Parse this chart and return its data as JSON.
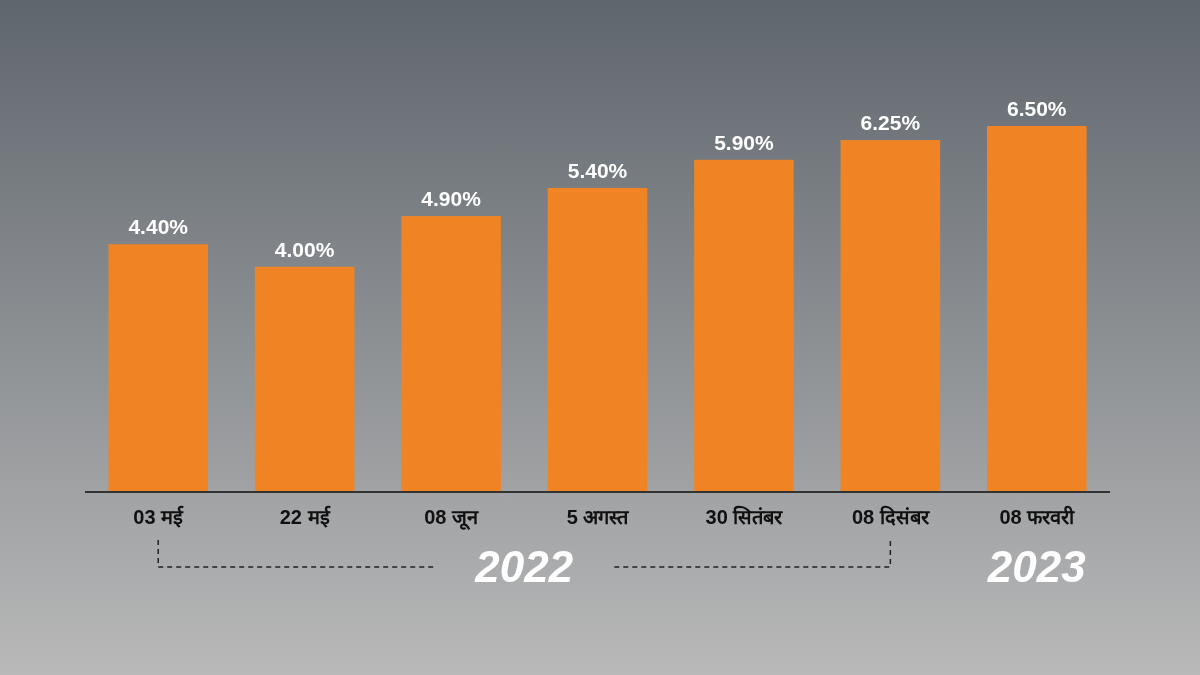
{
  "chart_data": {
    "type": "bar",
    "categories": [
      "03 मई",
      "22 मई",
      "08 जून",
      "5 अगस्त",
      "30 सितंबर",
      "08 दिसंबर",
      "08 फरवरी"
    ],
    "values": [
      4.4,
      4.0,
      4.9,
      5.4,
      5.9,
      6.25,
      6.5
    ],
    "value_labels": [
      "4.40%",
      "4.00%",
      "4.90%",
      "5.40%",
      "5.90%",
      "6.25%",
      "6.50%"
    ],
    "color": "#f08424",
    "annotations": [
      "2022",
      "2023"
    ]
  }
}
